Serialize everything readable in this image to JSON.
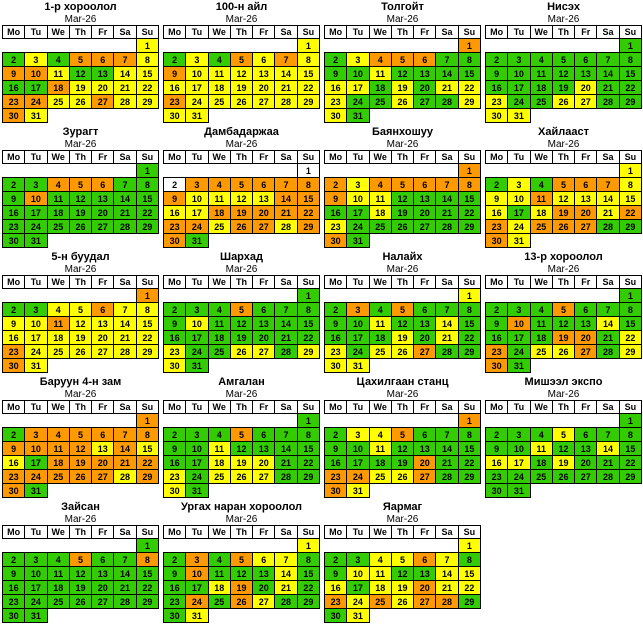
{
  "page": {
    "background": "#ffffff"
  },
  "month_label": "Mar-26",
  "weekdays": [
    "Mo",
    "Tu",
    "We",
    "Th",
    "Fr",
    "Sa",
    "Su"
  ],
  "first_day_column": 6,
  "days_in_month": 31,
  "colors": {
    "G": "#33CC00",
    "O": "#FF9900",
    "Y": "#FFFF00",
    "W": "#FFFFFF"
  },
  "calendars": [
    {
      "title": "1-р хороолол",
      "day_colors": [
        "Y",
        "G",
        "Y",
        "G",
        "O",
        "O",
        "O",
        "Y",
        "O",
        "O",
        "Y",
        "G",
        "G",
        "Y",
        "Y",
        "G",
        "G",
        "O",
        "Y",
        "Y",
        "Y",
        "Y",
        "O",
        "O",
        "Y",
        "Y",
        "O",
        "Y",
        "Y",
        "O",
        "Y"
      ]
    },
    {
      "title": "100-н айл",
      "day_colors": [
        "Y",
        "G",
        "Y",
        "G",
        "O",
        "Y",
        "O",
        "Y",
        "O",
        "Y",
        "Y",
        "Y",
        "Y",
        "Y",
        "Y",
        "Y",
        "Y",
        "Y",
        "Y",
        "Y",
        "Y",
        "Y",
        "O",
        "Y",
        "Y",
        "Y",
        "Y",
        "Y",
        "Y",
        "Y",
        "Y"
      ]
    },
    {
      "title": "Толгойт",
      "day_colors": [
        "O",
        "G",
        "Y",
        "O",
        "O",
        "O",
        "G",
        "G",
        "G",
        "G",
        "Y",
        "G",
        "G",
        "G",
        "G",
        "Y",
        "Y",
        "G",
        "Y",
        "G",
        "Y",
        "Y",
        "Y",
        "G",
        "G",
        "Y",
        "G",
        "G",
        "Y",
        "Y",
        "G"
      ]
    },
    {
      "title": "Нисэх",
      "day_colors": [
        "G",
        "G",
        "G",
        "G",
        "G",
        "G",
        "G",
        "G",
        "G",
        "G",
        "G",
        "G",
        "G",
        "G",
        "G",
        "G",
        "G",
        "G",
        "G",
        "Y",
        "G",
        "G",
        "Y",
        "G",
        "G",
        "Y",
        "Y",
        "G",
        "G",
        "Y",
        "Y"
      ]
    },
    {
      "title": "Зурагт",
      "day_colors": [
        "G",
        "G",
        "G",
        "O",
        "O",
        "O",
        "G",
        "G",
        "G",
        "O",
        "G",
        "G",
        "G",
        "G",
        "G",
        "G",
        "G",
        "G",
        "G",
        "G",
        "G",
        "G",
        "G",
        "G",
        "G",
        "G",
        "G",
        "G",
        "G",
        "G",
        "G"
      ]
    },
    {
      "title": "Дамбадаржаа",
      "day_colors": [
        "W",
        "W",
        "O",
        "O",
        "O",
        "O",
        "O",
        "O",
        "O",
        "Y",
        "Y",
        "Y",
        "Y",
        "O",
        "O",
        "Y",
        "Y",
        "O",
        "O",
        "O",
        "O",
        "O",
        "O",
        "O",
        "Y",
        "O",
        "O",
        "Y",
        "O",
        "O",
        "G"
      ]
    },
    {
      "title": "Баянхошуу",
      "day_colors": [
        "O",
        "O",
        "Y",
        "O",
        "O",
        "O",
        "O",
        "O",
        "O",
        "Y",
        "Y",
        "G",
        "G",
        "G",
        "G",
        "G",
        "G",
        "Y",
        "G",
        "G",
        "G",
        "G",
        "Y",
        "G",
        "G",
        "G",
        "G",
        "G",
        "G",
        "O",
        "G"
      ]
    },
    {
      "title": "Хайлааст",
      "day_colors": [
        "Y",
        "G",
        "Y",
        "G",
        "O",
        "O",
        "O",
        "Y",
        "Y",
        "Y",
        "O",
        "Y",
        "Y",
        "Y",
        "Y",
        "Y",
        "G",
        "Y",
        "O",
        "O",
        "Y",
        "O",
        "O",
        "Y",
        "O",
        "O",
        "O",
        "G",
        "G",
        "O",
        "Y"
      ]
    },
    {
      "title": "5-н буудал",
      "day_colors": [
        "O",
        "G",
        "G",
        "Y",
        "Y",
        "O",
        "Y",
        "Y",
        "Y",
        "Y",
        "O",
        "Y",
        "Y",
        "Y",
        "Y",
        "Y",
        "Y",
        "Y",
        "Y",
        "Y",
        "Y",
        "Y",
        "O",
        "Y",
        "Y",
        "Y",
        "Y",
        "Y",
        "Y",
        "O",
        "Y"
      ]
    },
    {
      "title": "Шархад",
      "day_colors": [
        "G",
        "G",
        "G",
        "G",
        "O",
        "G",
        "G",
        "G",
        "G",
        "Y",
        "G",
        "G",
        "G",
        "G",
        "G",
        "G",
        "G",
        "G",
        "G",
        "G",
        "G",
        "G",
        "Y",
        "G",
        "G",
        "Y",
        "Y",
        "G",
        "Y",
        "Y",
        "G"
      ]
    },
    {
      "title": "Налайх",
      "day_colors": [
        "Y",
        "G",
        "O",
        "G",
        "O",
        "G",
        "G",
        "G",
        "G",
        "G",
        "Y",
        "G",
        "G",
        "Y",
        "G",
        "G",
        "G",
        "G",
        "Y",
        "G",
        "Y",
        "G",
        "Y",
        "G",
        "Y",
        "Y",
        "O",
        "G",
        "G",
        "Y",
        "Y"
      ]
    },
    {
      "title": "13-р хороолол",
      "day_colors": [
        "G",
        "G",
        "G",
        "G",
        "O",
        "G",
        "G",
        "G",
        "G",
        "O",
        "G",
        "G",
        "G",
        "Y",
        "G",
        "G",
        "G",
        "G",
        "O",
        "O",
        "G",
        "Y",
        "O",
        "G",
        "Y",
        "Y",
        "O",
        "G",
        "Y",
        "O",
        "G"
      ]
    },
    {
      "title": "Баруун 4-н зам",
      "day_colors": [
        "O",
        "G",
        "O",
        "O",
        "O",
        "O",
        "O",
        "O",
        "O",
        "O",
        "O",
        "O",
        "Y",
        "O",
        "Y",
        "Y",
        "G",
        "O",
        "O",
        "O",
        "O",
        "O",
        "O",
        "O",
        "O",
        "O",
        "O",
        "Y",
        "O",
        "O",
        "G"
      ]
    },
    {
      "title": "Амгалан",
      "day_colors": [
        "G",
        "G",
        "G",
        "G",
        "O",
        "G",
        "G",
        "G",
        "G",
        "G",
        "Y",
        "G",
        "G",
        "G",
        "G",
        "G",
        "G",
        "Y",
        "Y",
        "Y",
        "G",
        "G",
        "Y",
        "G",
        "Y",
        "Y",
        "Y",
        "G",
        "G",
        "Y",
        "G"
      ]
    },
    {
      "title": "Цахилгаан станц",
      "day_colors": [
        "O",
        "G",
        "Y",
        "Y",
        "O",
        "G",
        "G",
        "G",
        "G",
        "G",
        "Y",
        "G",
        "G",
        "G",
        "G",
        "G",
        "G",
        "G",
        "G",
        "O",
        "G",
        "G",
        "O",
        "O",
        "Y",
        "Y",
        "O",
        "G",
        "G",
        "O",
        "Y"
      ]
    },
    {
      "title": "Мишээл экспо",
      "day_colors": [
        "G",
        "G",
        "G",
        "G",
        "Y",
        "G",
        "G",
        "G",
        "G",
        "G",
        "Y",
        "G",
        "G",
        "Y",
        "G",
        "Y",
        "Y",
        "G",
        "Y",
        "G",
        "G",
        "G",
        "G",
        "G",
        "G",
        "G",
        "G",
        "G",
        "G",
        "G",
        "G"
      ]
    },
    {
      "title": "Зайсан",
      "day_colors": [
        "G",
        "G",
        "G",
        "G",
        "O",
        "G",
        "G",
        "O",
        "G",
        "G",
        "G",
        "G",
        "G",
        "G",
        "G",
        "G",
        "G",
        "G",
        "G",
        "G",
        "G",
        "G",
        "G",
        "G",
        "G",
        "G",
        "G",
        "G",
        "G",
        "G",
        "G"
      ]
    },
    {
      "title": "Ургах наран хороолол",
      "day_colors": [
        "Y",
        "G",
        "O",
        "G",
        "O",
        "Y",
        "Y",
        "G",
        "G",
        "O",
        "G",
        "G",
        "G",
        "Y",
        "G",
        "G",
        "G",
        "Y",
        "O",
        "G",
        "Y",
        "G",
        "G",
        "O",
        "G",
        "O",
        "Y",
        "G",
        "G",
        "G",
        "Y"
      ]
    },
    {
      "title": "Яармаг",
      "day_colors": [
        "Y",
        "G",
        "G",
        "Y",
        "Y",
        "O",
        "Y",
        "G",
        "G",
        "Y",
        "Y",
        "G",
        "G",
        "Y",
        "Y",
        "Y",
        "G",
        "Y",
        "Y",
        "O",
        "Y",
        "Y",
        "O",
        "Y",
        "O",
        "Y",
        "O",
        "O",
        "G",
        "G",
        "Y"
      ]
    }
  ]
}
